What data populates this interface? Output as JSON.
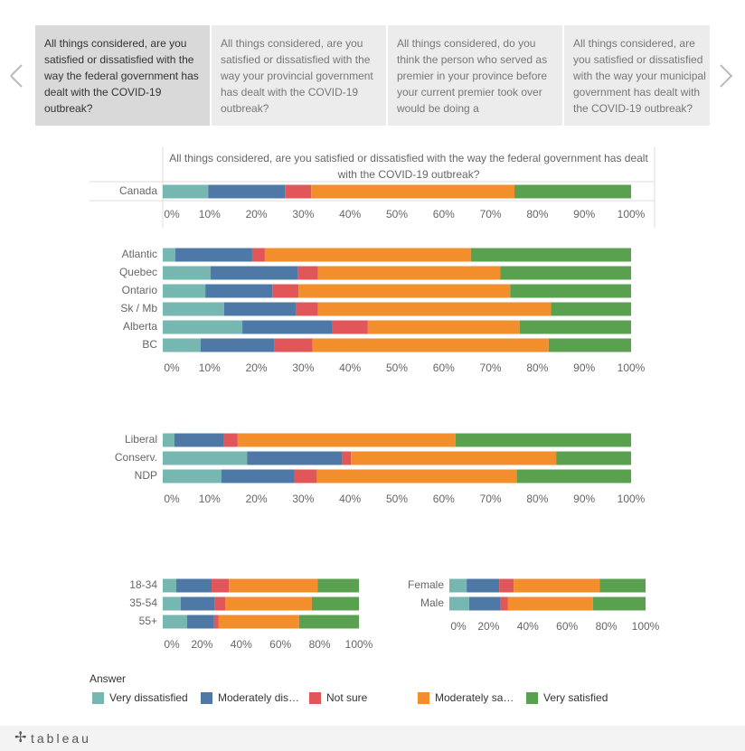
{
  "tabs": [
    "All things considered, are you satisfied or dissatisfied with the way the federal government has dealt with the COVID-19 outbreak?",
    "All things considered, are you satisfied or dissatisfied with the way your provincial government has dealt with the COVID-19 outbreak?",
    "All things considered, do you think the person who served as premier in your province before your current premier took over would be doing a",
    "All things considered, are you satisfied or dissatisfied with the way your municipal government has dealt with the COVID-19 outbreak?"
  ],
  "legend": {
    "title": "Answer",
    "items": [
      {
        "name": "Very dissatisfied",
        "color": "#76b7b2"
      },
      {
        "name": "Moderately dis…",
        "color": "#4e79a7"
      },
      {
        "name": "Not sure",
        "color": "#e15759"
      },
      {
        "name": "Moderately sa…",
        "color": "#f28e2b"
      },
      {
        "name": "Very satisfied",
        "color": "#59a14f"
      }
    ]
  },
  "logo": "tableau",
  "chart_data": [
    {
      "type": "bar",
      "title": "All things considered, are you satisfied or dissatisfied with the way the federal government has dealt with the COVID-19 outbreak?",
      "categories": [
        "Canada"
      ],
      "series": [
        {
          "values": [
            9.7
          ]
        },
        {
          "values": [
            16.4
          ]
        },
        {
          "values": [
            5.6
          ]
        },
        {
          "values": [
            43.4
          ]
        },
        {
          "values": [
            24.9
          ]
        }
      ],
      "xlim": [
        0,
        100
      ],
      "xticks": [
        {
          "value": 0,
          "label": "0%"
        },
        {
          "value": 10,
          "label": "10%"
        },
        {
          "value": 20,
          "label": "20%"
        },
        {
          "value": 30,
          "label": "30%"
        },
        {
          "value": 40,
          "label": "40%"
        },
        {
          "value": 50,
          "label": "50%"
        },
        {
          "value": 60,
          "label": "60%"
        },
        {
          "value": 70,
          "label": "70%"
        },
        {
          "value": 80,
          "label": "80%"
        },
        {
          "value": 90,
          "label": "90%"
        },
        {
          "value": 100,
          "label": "100%"
        }
      ]
    },
    {
      "type": "bar",
      "categories": [
        "Atlantic",
        "Quebec",
        "Ontario",
        "Sk / Mb",
        "Alberta",
        "BC"
      ],
      "series": [
        {
          "values": [
            2.7,
            10.2,
            9.1,
            13.1,
            17.0,
            8.1
          ]
        },
        {
          "values": [
            16.4,
            18.7,
            14.3,
            15.4,
            19.1,
            15.8
          ]
        },
        {
          "values": [
            2.7,
            4.2,
            5.6,
            4.6,
            7.7,
            8.1
          ]
        },
        {
          "values": [
            44.0,
            39.0,
            45.2,
            49.8,
            32.4,
            50.4
          ]
        },
        {
          "values": [
            34.2,
            27.9,
            25.8,
            17.1,
            23.8,
            17.6
          ]
        }
      ],
      "xlim": [
        0,
        100
      ],
      "xticks": [
        {
          "value": 0,
          "label": "0%"
        },
        {
          "value": 10,
          "label": "10%"
        },
        {
          "value": 20,
          "label": "20%"
        },
        {
          "value": 30,
          "label": "30%"
        },
        {
          "value": 40,
          "label": "40%"
        },
        {
          "value": 50,
          "label": "50%"
        },
        {
          "value": 60,
          "label": "60%"
        },
        {
          "value": 70,
          "label": "70%"
        },
        {
          "value": 80,
          "label": "80%"
        },
        {
          "value": 90,
          "label": "90%"
        },
        {
          "value": 100,
          "label": "100%"
        }
      ]
    },
    {
      "type": "bar",
      "categories": [
        "Liberal",
        "Conserv.",
        "NDP"
      ],
      "series": [
        {
          "values": [
            2.5,
            18.0,
            12.5
          ]
        },
        {
          "values": [
            10.6,
            20.3,
            15.6
          ]
        },
        {
          "values": [
            2.9,
            1.9,
            4.8
          ]
        },
        {
          "values": [
            46.5,
            43.8,
            42.7
          ]
        },
        {
          "values": [
            37.5,
            16.0,
            24.4
          ]
        }
      ],
      "xlim": [
        0,
        100
      ],
      "xticks": [
        {
          "value": 0,
          "label": "0%"
        },
        {
          "value": 10,
          "label": "10%"
        },
        {
          "value": 20,
          "label": "20%"
        },
        {
          "value": 30,
          "label": "30%"
        },
        {
          "value": 40,
          "label": "40%"
        },
        {
          "value": 50,
          "label": "50%"
        },
        {
          "value": 60,
          "label": "60%"
        },
        {
          "value": 70,
          "label": "70%"
        },
        {
          "value": 80,
          "label": "80%"
        },
        {
          "value": 90,
          "label": "90%"
        },
        {
          "value": 100,
          "label": "100%"
        }
      ]
    },
    {
      "type": "bar",
      "categories": [
        "18-34",
        "35-54",
        "55+"
      ],
      "series": [
        {
          "values": [
            6.9,
            9.2,
            12.4
          ]
        },
        {
          "values": [
            18.0,
            17.1,
            13.8
          ]
        },
        {
          "values": [
            8.8,
            5.5,
            2.3
          ]
        },
        {
          "values": [
            45.2,
            44.2,
            41.0
          ]
        },
        {
          "values": [
            21.1,
            24.0,
            30.5
          ]
        }
      ],
      "xlim": [
        0,
        100
      ],
      "xticks": [
        {
          "value": 0,
          "label": "0%"
        },
        {
          "value": 20,
          "label": "20%"
        },
        {
          "value": 40,
          "label": "40%"
        },
        {
          "value": 60,
          "label": "60%"
        },
        {
          "value": 80,
          "label": "80%"
        },
        {
          "value": 100,
          "label": "100%"
        }
      ]
    },
    {
      "type": "bar",
      "categories": [
        "Female",
        "Male"
      ],
      "series": [
        {
          "values": [
            8.8,
            10.1
          ]
        },
        {
          "values": [
            16.6,
            16.1
          ]
        },
        {
          "values": [
            7.4,
            3.7
          ]
        },
        {
          "values": [
            43.8,
            43.3
          ]
        },
        {
          "values": [
            23.4,
            26.8
          ]
        }
      ],
      "xlim": [
        0,
        100
      ],
      "xticks": [
        {
          "value": 0,
          "label": "0%"
        },
        {
          "value": 20,
          "label": "20%"
        },
        {
          "value": 40,
          "label": "40%"
        },
        {
          "value": 60,
          "label": "60%"
        },
        {
          "value": 80,
          "label": "80%"
        },
        {
          "value": 100,
          "label": "100%"
        }
      ]
    }
  ]
}
